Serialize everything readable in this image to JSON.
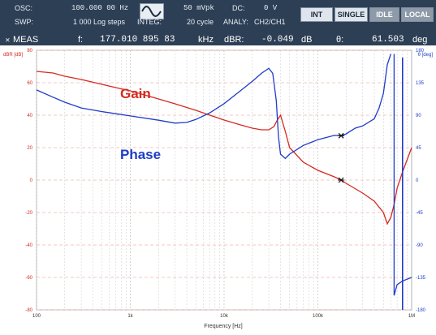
{
  "header": {
    "osc_label": "OSC:",
    "osc_freq": "100.000 00 Hz",
    "osc_amp": "50 mVpk",
    "dc_label": "DC:",
    "dc_value": "0 V",
    "swp_label": "SWP:",
    "swp_value": "1 000 Log steps",
    "integ_label": "INTEG:",
    "integ_value": "20 cycle",
    "analy_label": "ANALY:",
    "analy_value": "CH2/CH1",
    "buttons": {
      "int": "INT",
      "single": "SINGLE",
      "idle": "IDLE",
      "local": "LOCAL"
    },
    "meas_label": "MEAS",
    "f_label": "f:",
    "f_value": "177.010 895 83",
    "f_unit": "kHz",
    "dbr_label": "dBR:",
    "dbr_value": "-0.049",
    "dbr_unit": "dB",
    "theta_label": "θ:",
    "theta_value": "61.503",
    "theta_unit": "deg",
    "wave_icon": "sine-wave-icon"
  },
  "plot": {
    "left_axis_title": "dBR [dB]",
    "right_axis_title": "θ [deg]",
    "xlabel": "Frequency [Hz]",
    "gain_label": "Gain",
    "phase_label": "Phase",
    "colors": {
      "gain": "#d42a20",
      "phase": "#1f3cc8",
      "grid_h": "#f0b7b0",
      "grid_v": "#c8c8c8"
    }
  },
  "chart_data": {
    "type": "line",
    "xscale": "log",
    "xlim": [
      100,
      1000000
    ],
    "ylim_left": [
      -80,
      80
    ],
    "ylim_right": [
      -180,
      180
    ],
    "x_ticks": [
      "100",
      "1k",
      "10k",
      "100k",
      "1M"
    ],
    "y_left_ticks": [
      "80",
      "60",
      "40",
      "20",
      "0",
      "-20",
      "-40",
      "-60",
      "-80"
    ],
    "y_right_ticks": [
      "180",
      "135",
      "90",
      "45",
      "0",
      "-45",
      "-90",
      "-135",
      "-180"
    ],
    "series": [
      {
        "name": "Gain",
        "axis": "left",
        "x": [
          100,
          150,
          200,
          300,
          500,
          700,
          1000,
          2000,
          3000,
          5000,
          10000,
          15000,
          20000,
          25000,
          30000,
          34000,
          37000,
          40000,
          45000,
          50000,
          70000,
          100000,
          150000,
          177000,
          200000,
          300000,
          400000,
          500000,
          550000,
          600000,
          650000,
          700000,
          800000,
          1000000
        ],
        "y": [
          67,
          66,
          64,
          62,
          59,
          57,
          55,
          50,
          47,
          43,
          37,
          34,
          32,
          31,
          31,
          33,
          37,
          40,
          30,
          20,
          11,
          6,
          2,
          0,
          -2,
          -8,
          -13,
          -20,
          -27,
          -23,
          -15,
          -5,
          5,
          20
        ]
      },
      {
        "name": "Phase",
        "axis": "right",
        "x": [
          100,
          150,
          200,
          300,
          500,
          700,
          1000,
          2000,
          3000,
          4000,
          5000,
          7000,
          10000,
          15000,
          20000,
          25000,
          30000,
          33000,
          36000,
          38000,
          40000,
          45000,
          50000,
          70000,
          100000,
          150000,
          177000,
          200000,
          250000,
          300000,
          400000,
          450000,
          500000,
          550000,
          600000,
          650000,
          700000,
          800000,
          1000000
        ],
        "y": [
          125,
          115,
          108,
          100,
          95,
          92,
          89,
          83,
          79,
          80,
          84,
          93,
          106,
          124,
          137,
          148,
          155,
          148,
          110,
          60,
          36,
          30,
          36,
          48,
          56,
          62,
          61.5,
          64,
          72,
          75,
          85,
          100,
          120,
          160,
          175,
          -160,
          -145,
          -140,
          -135
        ]
      }
    ],
    "markers": [
      {
        "series": "Gain",
        "x": 177000,
        "y": 0
      },
      {
        "series": "Phase",
        "x": 177000,
        "y": 61.5
      }
    ]
  }
}
